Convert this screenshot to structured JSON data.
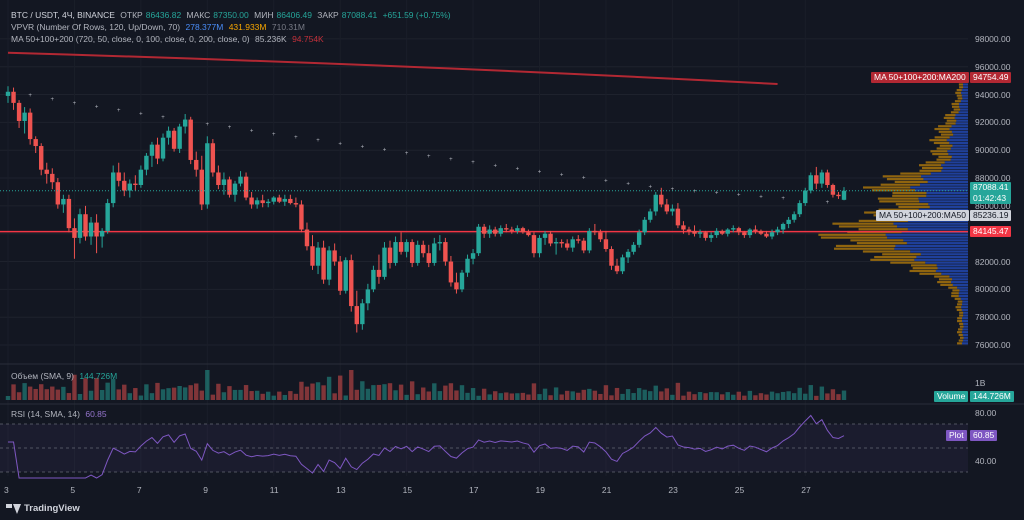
{
  "header": {
    "symbol": "BTC / USDT, 4Ч, BINANCE",
    "o_label": "ОТКР",
    "o_value": "86436.82",
    "h_label": "МАКС",
    "h_value": "87350.00",
    "l_label": "МИН",
    "l_value": "86406.49",
    "c_label": "ЗАКР",
    "c_value": "87088.41",
    "change": "+651.59 (+0.75%)"
  },
  "indicators": {
    "vpvr": {
      "label": "VPVR (Number Of Rows, 120, Up/Down, 70)",
      "v1": "278.377M",
      "v2": "431.933M",
      "v3": "710.31M"
    },
    "ma": {
      "label": "MA 50+100+200 (720, 50, close, 0, 100, close, 0, 200, close, 0)",
      "v1": "85.236K",
      "v2": "94.754K"
    },
    "volume": {
      "label": "Объем (SMA, 9)",
      "value": "144.726M"
    },
    "rsi": {
      "label": "RSI (14, SMA, 14)",
      "value": "60.85"
    }
  },
  "price_axis": {
    "ticks": [
      "98000.00",
      "96000.00",
      "94000.00",
      "92000.00",
      "90000.00",
      "88000.00",
      "86000.00",
      "84000.00",
      "82000.00",
      "80000.00",
      "78000.00",
      "76000.00"
    ],
    "tags": {
      "ma200_label": "MA 50+100+200:MA200",
      "ma200_value": "94754.49",
      "last_price": "87088.41",
      "countdown": "01:42:43",
      "ma50_label": "MA 50+100+200:MA50",
      "ma50_value": "85236.19",
      "hline_value": "84145.47"
    }
  },
  "volume_axis": {
    "tick": "1B",
    "tag_label": "Volume",
    "tag_value": "144.726M"
  },
  "rsi_axis": {
    "ticks": [
      "80.00",
      "40.00"
    ],
    "tag_label": "Plot",
    "tag_value": "60.85"
  },
  "time_axis": {
    "ticks": [
      "3",
      "5",
      "7",
      "9",
      "11",
      "13",
      "15",
      "17",
      "19",
      "21",
      "23",
      "25",
      "27"
    ]
  },
  "colors": {
    "up": "#26a69a",
    "down": "#ef5350",
    "ma200": "#b22833",
    "hline": "#f23645",
    "vp_up": "#2962ff",
    "vp_down": "#f7a600",
    "rsi": "#7e57c2",
    "bg": "#131722"
  },
  "branding": {
    "logo_text": "TradingView"
  },
  "chart_data": {
    "type": "candlestick",
    "timeframe": "4h",
    "candles": [
      [
        93900,
        94600,
        93400,
        94200
      ],
      [
        94200,
        94500,
        92900,
        93400
      ],
      [
        93400,
        93600,
        91600,
        92100
      ],
      [
        92100,
        93100,
        91200,
        92700
      ],
      [
        92700,
        93000,
        90400,
        90800
      ],
      [
        90800,
        91000,
        89800,
        90300
      ],
      [
        90300,
        90500,
        88200,
        88600
      ],
      [
        88600,
        89100,
        87600,
        88300
      ],
      [
        88300,
        88700,
        87200,
        87700
      ],
      [
        87700,
        88000,
        85800,
        86100
      ],
      [
        86100,
        86800,
        85500,
        86500
      ],
      [
        86500,
        86800,
        84100,
        84400
      ],
      [
        84400,
        85100,
        82200,
        83700
      ],
      [
        83700,
        85800,
        83300,
        85400
      ],
      [
        85400,
        86000,
        83500,
        83800
      ],
      [
        83800,
        85200,
        83200,
        84800
      ],
      [
        84800,
        85400,
        82600,
        83800
      ],
      [
        83800,
        84400,
        83000,
        84200
      ],
      [
        84200,
        86500,
        84000,
        86200
      ],
      [
        86200,
        88900,
        85900,
        88400
      ],
      [
        88400,
        89100,
        87400,
        87800
      ],
      [
        87800,
        88400,
        86700,
        87100
      ],
      [
        87100,
        87900,
        86600,
        87600
      ],
      [
        87600,
        88200,
        87100,
        87500
      ],
      [
        87500,
        88900,
        87300,
        88600
      ],
      [
        88600,
        89800,
        88200,
        89600
      ],
      [
        89600,
        90600,
        88800,
        90400
      ],
      [
        90400,
        90900,
        89000,
        89400
      ],
      [
        89400,
        91200,
        89200,
        90900
      ],
      [
        90900,
        91700,
        90400,
        91400
      ],
      [
        91400,
        91600,
        89900,
        90100
      ],
      [
        90100,
        91900,
        89800,
        91700
      ],
      [
        91700,
        92600,
        91200,
        92200
      ],
      [
        92200,
        92400,
        89000,
        89300
      ],
      [
        89300,
        89900,
        88100,
        88600
      ],
      [
        88600,
        89600,
        85700,
        86100
      ],
      [
        86100,
        91000,
        85800,
        90500
      ],
      [
        90500,
        90800,
        88100,
        88400
      ],
      [
        88400,
        88900,
        87200,
        87500
      ],
      [
        87500,
        88400,
        86800,
        87900
      ],
      [
        87900,
        88100,
        86600,
        86800
      ],
      [
        86800,
        87800,
        86300,
        87600
      ],
      [
        87600,
        88500,
        87400,
        88100
      ],
      [
        88100,
        88400,
        86400,
        86600
      ],
      [
        86600,
        87000,
        85800,
        86100
      ],
      [
        86100,
        86600,
        85800,
        86400
      ],
      [
        86400,
        86800,
        85900,
        86200
      ],
      [
        86200,
        86500,
        85900,
        86300
      ],
      [
        86300,
        86700,
        86100,
        86600
      ],
      [
        86600,
        86800,
        86200,
        86300
      ],
      [
        86300,
        86800,
        86000,
        86500
      ],
      [
        86500,
        86800,
        86100,
        86200
      ],
      [
        86200,
        86600,
        85900,
        86100
      ],
      [
        86100,
        86400,
        84100,
        84300
      ],
      [
        84300,
        84800,
        82800,
        83100
      ],
      [
        83100,
        83900,
        81400,
        81700
      ],
      [
        81700,
        83400,
        81100,
        83000
      ],
      [
        83000,
        83500,
        80400,
        80700
      ],
      [
        80700,
        83100,
        80300,
        82800
      ],
      [
        82800,
        83300,
        81700,
        82000
      ],
      [
        82000,
        82400,
        79600,
        79900
      ],
      [
        79900,
        82300,
        79700,
        82100
      ],
      [
        82100,
        82500,
        78400,
        78800
      ],
      [
        78800,
        79900,
        76900,
        77500
      ],
      [
        77500,
        79300,
        77100,
        79000
      ],
      [
        79000,
        80400,
        78500,
        80000
      ],
      [
        80000,
        81700,
        79800,
        81400
      ],
      [
        81400,
        82500,
        80400,
        80900
      ],
      [
        80900,
        83400,
        80700,
        83000
      ],
      [
        83000,
        83500,
        81500,
        81900
      ],
      [
        81900,
        83800,
        81700,
        83400
      ],
      [
        83400,
        84100,
        82500,
        82700
      ],
      [
        82700,
        83600,
        82300,
        83400
      ],
      [
        83400,
        83600,
        81600,
        81900
      ],
      [
        81900,
        83500,
        81700,
        83200
      ],
      [
        83200,
        83500,
        82300,
        82600
      ],
      [
        82600,
        83200,
        81600,
        81900
      ],
      [
        81900,
        83700,
        81700,
        83300
      ],
      [
        83300,
        83900,
        82800,
        83400
      ],
      [
        83400,
        83700,
        81700,
        82000
      ],
      [
        82000,
        82400,
        80200,
        80500
      ],
      [
        80500,
        81200,
        79700,
        80000
      ],
      [
        80000,
        81400,
        79800,
        81200
      ],
      [
        81200,
        82500,
        80900,
        82200
      ],
      [
        82200,
        82900,
        81800,
        82600
      ],
      [
        82600,
        84700,
        82400,
        84500
      ],
      [
        84500,
        84700,
        83700,
        84000
      ],
      [
        84000,
        84600,
        83700,
        84300
      ],
      [
        84300,
        84500,
        83800,
        84000
      ],
      [
        84000,
        84600,
        83800,
        84400
      ],
      [
        84400,
        84700,
        84100,
        84300
      ],
      [
        84300,
        84500,
        84000,
        84200
      ],
      [
        84200,
        84600,
        84000,
        84400
      ],
      [
        84400,
        84500,
        84000,
        84100
      ],
      [
        84100,
        84300,
        83800,
        83900
      ],
      [
        83900,
        84100,
        82300,
        82600
      ],
      [
        82600,
        83900,
        82300,
        83700
      ],
      [
        83700,
        84200,
        83200,
        84000
      ],
      [
        84000,
        84200,
        83100,
        83300
      ],
      [
        83300,
        83700,
        82500,
        83400
      ],
      [
        83400,
        83600,
        83000,
        83300
      ],
      [
        83300,
        83600,
        82800,
        83000
      ],
      [
        83000,
        83800,
        82700,
        83600
      ],
      [
        83600,
        83900,
        83300,
        83500
      ],
      [
        83500,
        83700,
        82600,
        82800
      ],
      [
        82800,
        84400,
        82600,
        84200
      ],
      [
        84200,
        84700,
        83900,
        84100
      ],
      [
        84100,
        84300,
        83400,
        83600
      ],
      [
        83600,
        84200,
        82700,
        82900
      ],
      [
        82900,
        83100,
        81400,
        81700
      ],
      [
        81700,
        82200,
        81100,
        81300
      ],
      [
        81300,
        82500,
        81100,
        82300
      ],
      [
        82300,
        82900,
        81900,
        82700
      ],
      [
        82700,
        83400,
        82500,
        83200
      ],
      [
        83200,
        84300,
        83000,
        84100
      ],
      [
        84100,
        85200,
        83900,
        85000
      ],
      [
        85000,
        85800,
        84800,
        85600
      ],
      [
        85600,
        87000,
        85300,
        86800
      ],
      [
        86800,
        87300,
        85900,
        86100
      ],
      [
        86100,
        86500,
        85400,
        85600
      ],
      [
        85600,
        86100,
        85300,
        85800
      ],
      [
        85800,
        86200,
        84400,
        84600
      ],
      [
        84600,
        84900,
        84000,
        84300
      ],
      [
        84300,
        84500,
        83900,
        84200
      ],
      [
        84200,
        84600,
        83800,
        84000
      ],
      [
        84000,
        84300,
        83700,
        84100
      ],
      [
        84100,
        84200,
        83500,
        83700
      ],
      [
        83700,
        84100,
        83400,
        83900
      ],
      [
        83900,
        84400,
        83700,
        84200
      ],
      [
        84200,
        84300,
        83900,
        84000
      ],
      [
        84000,
        84400,
        83800,
        84300
      ],
      [
        84300,
        84600,
        84100,
        84400
      ],
      [
        84400,
        84500,
        83900,
        84100
      ],
      [
        84100,
        84200,
        83700,
        83900
      ],
      [
        83900,
        84400,
        83700,
        84300
      ],
      [
        84300,
        84600,
        84000,
        84200
      ],
      [
        84200,
        84300,
        83900,
        84000
      ],
      [
        84000,
        84200,
        83700,
        83800
      ],
      [
        83800,
        84300,
        83600,
        84100
      ],
      [
        84100,
        84500,
        83900,
        84300
      ],
      [
        84300,
        84800,
        84000,
        84700
      ],
      [
        84700,
        85200,
        84400,
        85000
      ],
      [
        85000,
        85600,
        84800,
        85400
      ],
      [
        85400,
        86400,
        85200,
        86200
      ],
      [
        86200,
        87300,
        86000,
        87100
      ],
      [
        87100,
        88400,
        86900,
        88200
      ],
      [
        88200,
        88800,
        87200,
        87600
      ],
      [
        87600,
        88600,
        87300,
        88400
      ],
      [
        88400,
        88600,
        87300,
        87500
      ],
      [
        87500,
        87600,
        86600,
        86800
      ],
      [
        86800,
        87000,
        86500,
        86700
      ],
      [
        86436,
        87350,
        86406,
        87088
      ]
    ],
    "ma200_endpoints": [
      [
        0,
        97000
      ],
      [
        139,
        94754
      ]
    ],
    "ma50_dots": "rendered as sparse markers",
    "horizontal_line": 84145.47,
    "last_price": 87088.41,
    "ylim": [
      75500,
      99500
    ],
    "rsi_range": [
      30,
      80
    ]
  }
}
